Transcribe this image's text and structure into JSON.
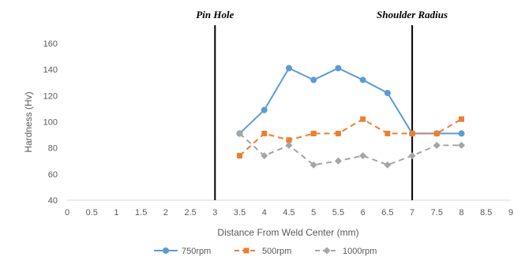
{
  "chart_data": {
    "type": "line",
    "xlabel": "Distance From Weld Center (mm)",
    "ylabel": "Hardness (Hv)",
    "xlim": [
      0,
      9
    ],
    "ylim": [
      40,
      160
    ],
    "x_ticks": [
      "0",
      "0.5",
      "1",
      "1.5",
      "2",
      "2.5",
      "3",
      "3.5",
      "4",
      "4.5",
      "5",
      "5.5",
      "6",
      "6.5",
      "7",
      "7.5",
      "8",
      "8.5",
      "9"
    ],
    "y_ticks": [
      "40",
      "60",
      "80",
      "100",
      "120",
      "140",
      "160"
    ],
    "grid": "none",
    "legend_position": "bottom",
    "series": [
      {
        "name": "750rpm",
        "color": "#5B9BD5",
        "line_style": "solid",
        "marker": "circle",
        "x": [
          3.5,
          4,
          4.5,
          5,
          5.5,
          6,
          6.5,
          7,
          7.5,
          8
        ],
        "y": [
          91,
          109,
          141,
          132,
          141,
          132,
          122,
          91,
          91,
          91
        ]
      },
      {
        "name": "500rpm",
        "color": "#ED7D31",
        "line_style": "dashed",
        "marker": "square",
        "x": [
          3.5,
          4,
          4.5,
          5,
          5.5,
          6,
          6.5,
          7,
          7.5,
          8
        ],
        "y": [
          74,
          91,
          86,
          91,
          91,
          102,
          91,
          91,
          91,
          102
        ]
      },
      {
        "name": "1000rpm",
        "color": "#A5A5A5",
        "line_style": "dashed",
        "marker": "diamond",
        "x": [
          3.5,
          4,
          4.5,
          5,
          5.5,
          6,
          6.5,
          7,
          7.5,
          8
        ],
        "y": [
          91,
          74,
          82,
          67,
          70,
          74,
          67,
          74,
          82,
          82
        ]
      }
    ],
    "annotations": [
      {
        "x": 3,
        "label": "Pin Hole",
        "style": "vertical-line"
      },
      {
        "x": 7,
        "label": "Shoulder Radius",
        "style": "vertical-line"
      }
    ]
  }
}
